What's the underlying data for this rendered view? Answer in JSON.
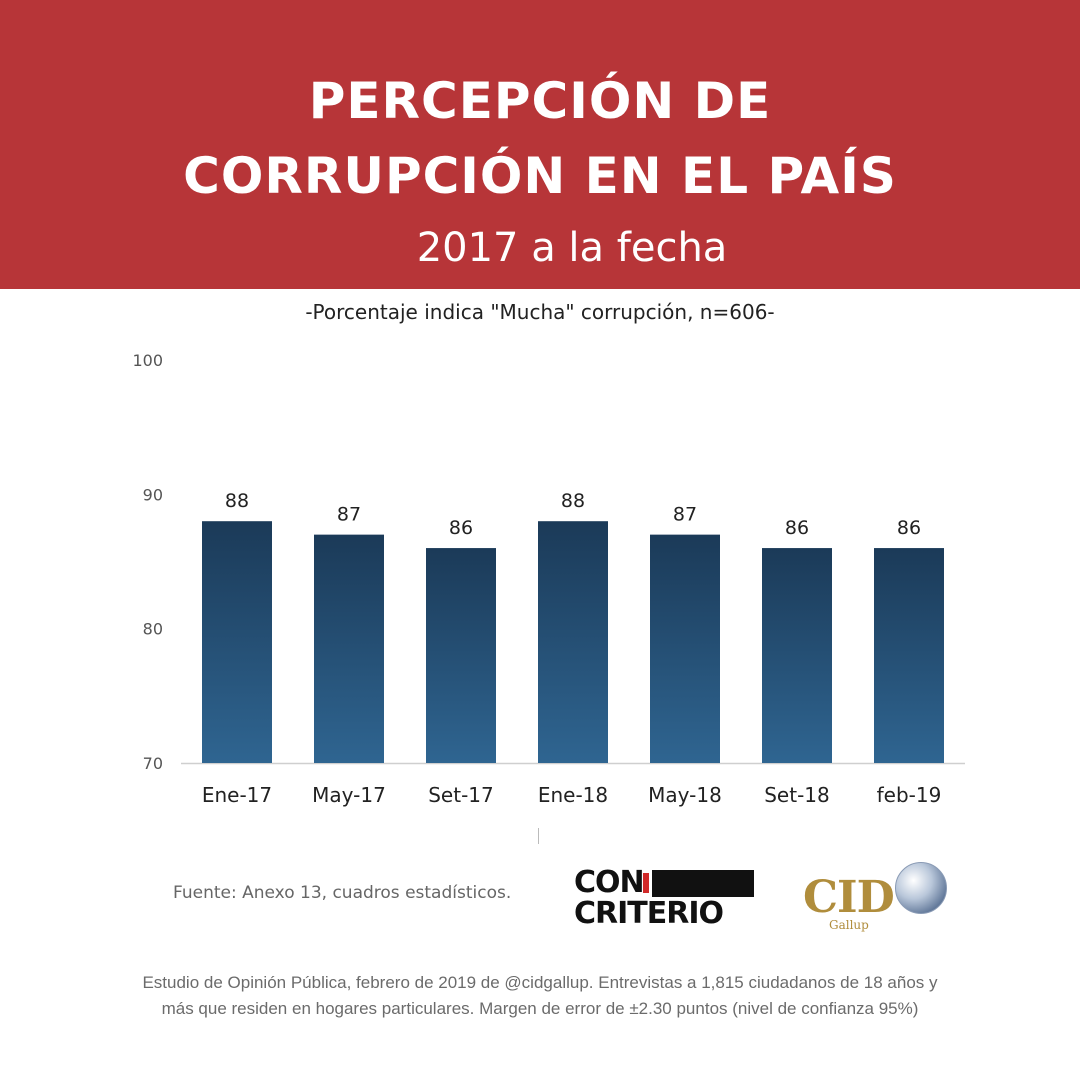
{
  "header": {
    "title_line1": "PERCEPCIÓN DE",
    "title_line2": "CORRUPCIÓN EN EL PAÍS",
    "subtitle": "2017 a la fecha",
    "banner_color": "#b73538"
  },
  "chart_data": {
    "type": "bar",
    "subtitle": "-Porcentaje indica \"Mucha\" corrupción, n=606-",
    "categories": [
      "Ene-17",
      "May-17",
      "Set-17",
      "Ene-18",
      "May-18",
      "Set-18",
      "feb-19"
    ],
    "values": [
      88,
      87,
      86,
      88,
      87,
      86,
      86
    ],
    "value_labels": [
      "88",
      "87",
      "86",
      "88",
      "87",
      "86",
      "86"
    ],
    "ylim": [
      70,
      100
    ],
    "yticks": [
      "70",
      "80",
      "90",
      "100"
    ],
    "grid": false,
    "bar_color_top": "#1b3a58",
    "bar_color_bottom": "#2f6591"
  },
  "source": "Fuente: Anexo 13, cuadros estadísticos.",
  "logos": {
    "con_word": "CON",
    "criterio_word": "CRITERIO",
    "cid_word": "CID",
    "cid_sub": "Gallup"
  },
  "footer": {
    "line1": "Estudio de Opinión Pública, febrero de 2019 de @cidgallup.  Entrevistas a 1,815 ciudadanos de 18 años y",
    "line2": "más que residen en hogares particulares. Margen de error de ±2.30 puntos (nivel de confianza 95%)"
  }
}
